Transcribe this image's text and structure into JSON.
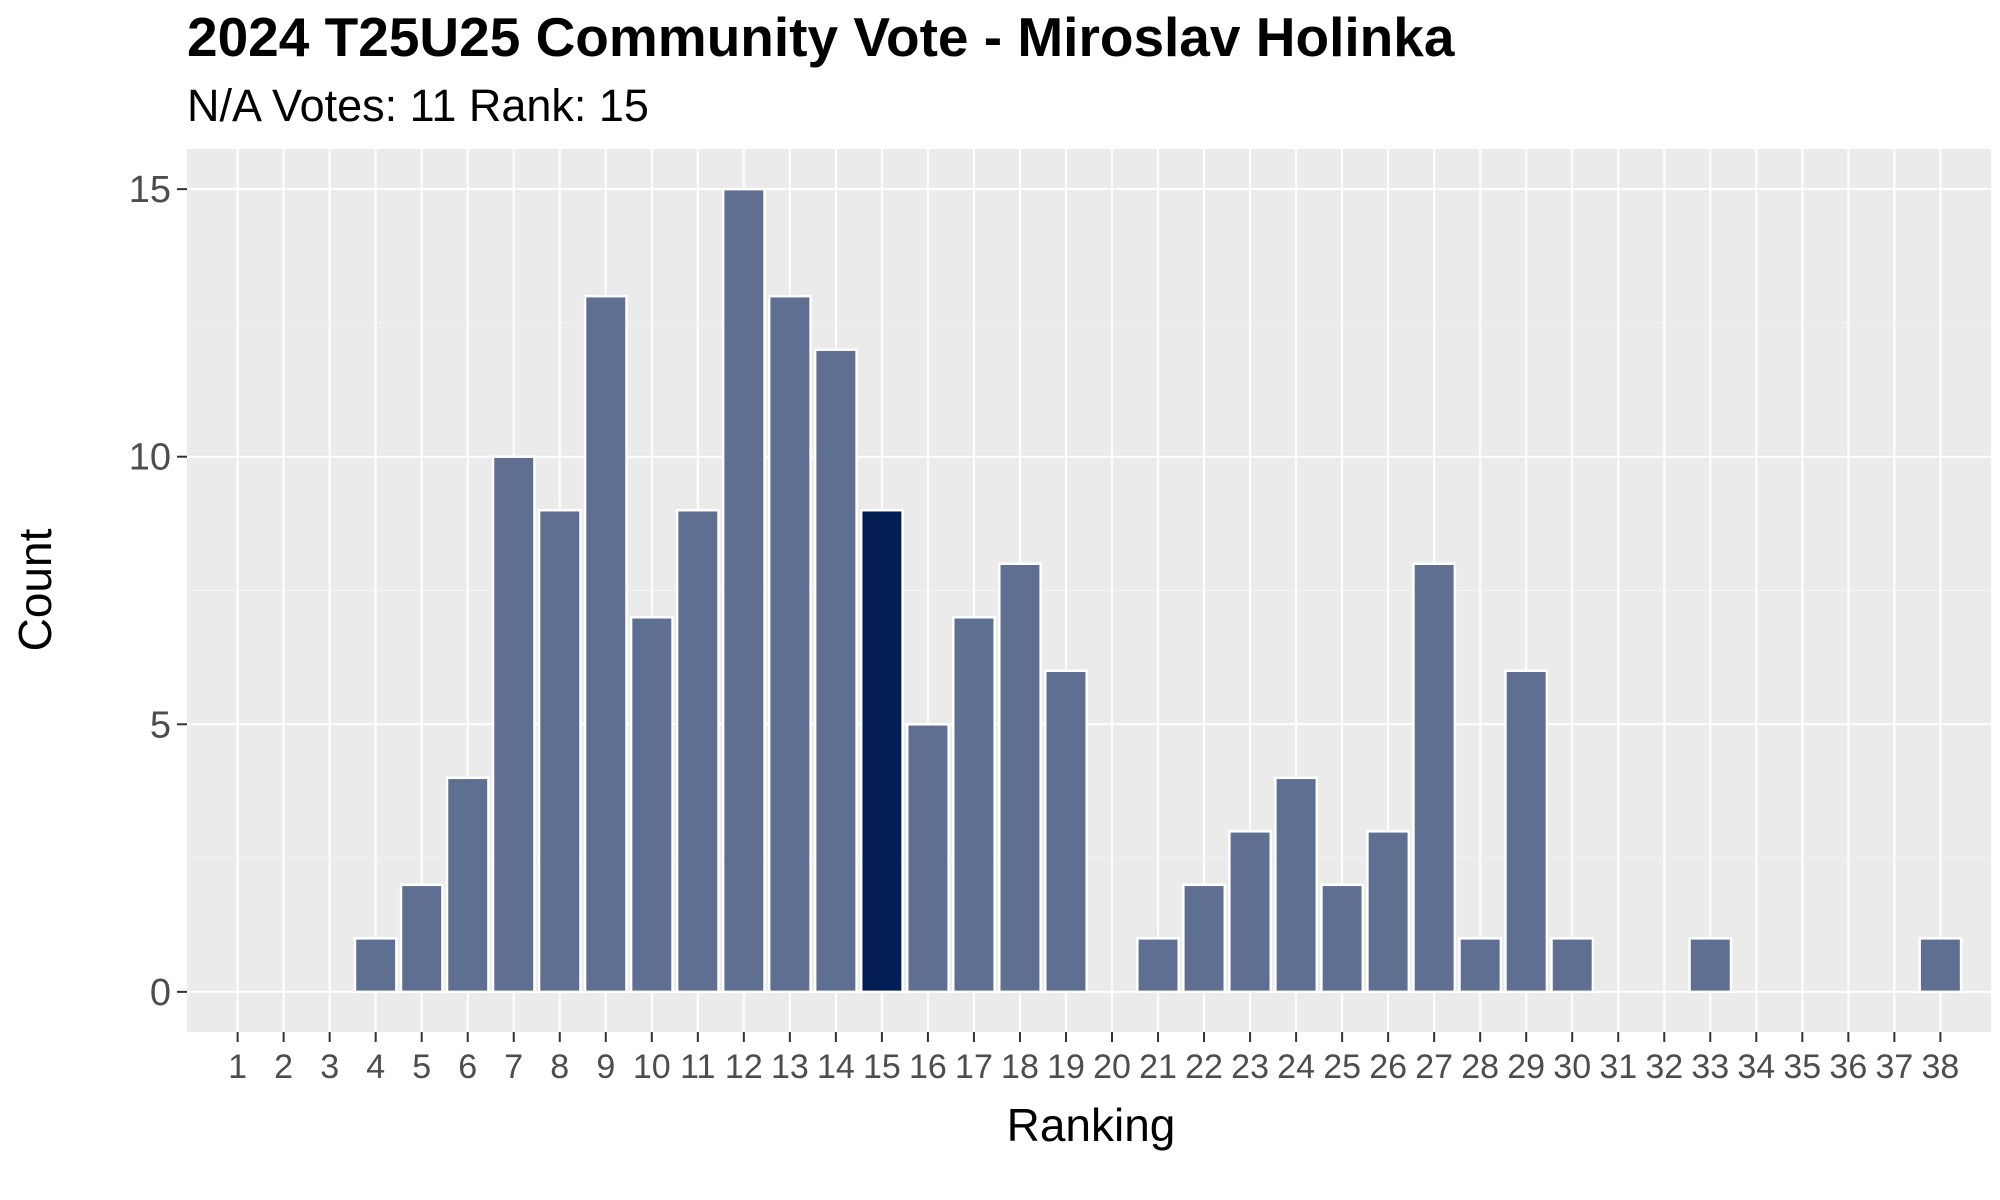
{
  "chart_data": {
    "type": "bar",
    "title": "2024 T25U25 Community Vote - Miroslav Holinka",
    "subtitle": "N/A Votes: 11  Rank: 15",
    "xlabel": "Ranking",
    "ylabel": "Count",
    "categories": [
      "1",
      "2",
      "3",
      "4",
      "5",
      "6",
      "7",
      "8",
      "9",
      "10",
      "11",
      "12",
      "13",
      "14",
      "15",
      "16",
      "17",
      "18",
      "19",
      "20",
      "21",
      "22",
      "23",
      "24",
      "25",
      "26",
      "27",
      "28",
      "29",
      "30",
      "31",
      "32",
      "33",
      "34",
      "35",
      "36",
      "37",
      "38"
    ],
    "values": [
      0,
      0,
      0,
      1,
      2,
      4,
      10,
      9,
      13,
      7,
      9,
      15,
      13,
      12,
      9,
      5,
      7,
      8,
      6,
      0,
      1,
      2,
      3,
      4,
      2,
      3,
      8,
      1,
      6,
      1,
      0,
      0,
      1,
      0,
      0,
      0,
      0,
      1
    ],
    "highlight_category": "15",
    "ylim": [
      -0.75,
      15.75
    ],
    "yticks": [
      0,
      5,
      10,
      15
    ],
    "grid": true,
    "legend": "none",
    "colors": {
      "bar": "#5e6f92",
      "highlight": "#021e54",
      "panel": "#ebebeb",
      "grid_major": "#ffffff",
      "bar_outline": "#ffffff"
    }
  }
}
